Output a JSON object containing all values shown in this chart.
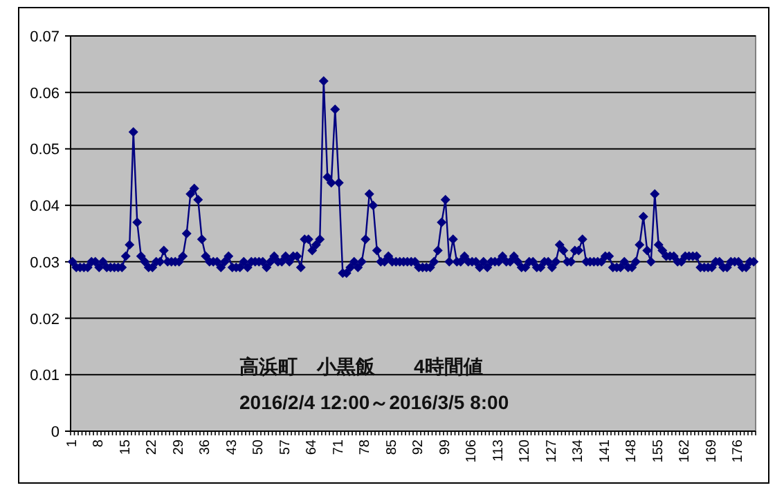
{
  "chart_data": {
    "type": "line",
    "title": "高浜町　小黒飯　　4時間値",
    "subtitle": "2016/2/4 12:00～2016/3/5 8:00",
    "categories": [
      "1",
      null,
      null,
      null,
      null,
      null,
      null,
      "8",
      null,
      null,
      null,
      null,
      null,
      null,
      "15",
      null,
      null,
      null,
      null,
      null,
      null,
      "22",
      null,
      null,
      null,
      null,
      null,
      null,
      "29",
      null,
      null,
      null,
      null,
      null,
      null,
      "36",
      null,
      null,
      null,
      null,
      null,
      null,
      "43",
      null,
      null,
      null,
      null,
      null,
      null,
      "50",
      null,
      null,
      null,
      null,
      null,
      null,
      "57",
      null,
      null,
      null,
      null,
      null,
      null,
      "64",
      null,
      null,
      null,
      null,
      null,
      null,
      "71",
      null,
      null,
      null,
      null,
      null,
      null,
      "78",
      null,
      null,
      null,
      null,
      null,
      null,
      "85",
      null,
      null,
      null,
      null,
      null,
      null,
      "92",
      null,
      null,
      null,
      null,
      null,
      null,
      "99",
      null,
      null,
      null,
      null,
      null,
      null,
      "106",
      null,
      null,
      null,
      null,
      null,
      null,
      "113",
      null,
      null,
      null,
      null,
      null,
      null,
      "120",
      null,
      null,
      null,
      null,
      null,
      null,
      "127",
      null,
      null,
      null,
      null,
      null,
      null,
      "134",
      null,
      null,
      null,
      null,
      null,
      null,
      "141",
      null,
      null,
      null,
      null,
      null,
      null,
      "148",
      null,
      null,
      null,
      null,
      null,
      null,
      "155",
      null,
      null,
      null,
      null,
      null,
      null,
      "162",
      null,
      null,
      null,
      null,
      null,
      null,
      "169",
      null,
      null,
      null,
      null,
      null,
      null,
      "176",
      null,
      null,
      null,
      null
    ],
    "series": [
      {
        "color": "#000080",
        "values": [
          0.03,
          0.029,
          0.029,
          0.029,
          0.029,
          0.03,
          0.03,
          0.029,
          0.03,
          0.029,
          0.029,
          0.029,
          0.029,
          0.029,
          0.031,
          0.033,
          0.053,
          0.037,
          0.031,
          0.03,
          0.029,
          0.029,
          0.03,
          0.03,
          0.032,
          0.03,
          0.03,
          0.03,
          0.03,
          0.031,
          0.035,
          0.042,
          0.043,
          0.041,
          0.034,
          0.031,
          0.03,
          0.03,
          0.03,
          0.029,
          0.03,
          0.031,
          0.029,
          0.029,
          0.029,
          0.03,
          0.029,
          0.03,
          0.03,
          0.03,
          0.03,
          0.029,
          0.03,
          0.031,
          0.03,
          0.03,
          0.031,
          0.03,
          0.031,
          0.031,
          0.029,
          0.034,
          0.034,
          0.032,
          0.033,
          0.034,
          0.062,
          0.045,
          0.044,
          0.057,
          0.044,
          0.028,
          0.028,
          0.029,
          0.03,
          0.029,
          0.03,
          0.034,
          0.042,
          0.04,
          0.032,
          0.03,
          0.03,
          0.031,
          0.03,
          0.03,
          0.03,
          0.03,
          0.03,
          0.03,
          0.03,
          0.029,
          0.029,
          0.029,
          0.029,
          0.03,
          0.032,
          0.037,
          0.041,
          0.03,
          0.034,
          0.03,
          0.03,
          0.031,
          0.03,
          0.03,
          0.03,
          0.029,
          0.03,
          0.029,
          0.03,
          0.03,
          0.03,
          0.031,
          0.03,
          0.03,
          0.031,
          0.03,
          0.029,
          0.029,
          0.03,
          0.03,
          0.029,
          0.029,
          0.03,
          0.03,
          0.029,
          0.03,
          0.033,
          0.032,
          0.03,
          0.03,
          0.032,
          0.032,
          0.034,
          0.03,
          0.03,
          0.03,
          0.03,
          0.03,
          0.031,
          0.031,
          0.029,
          0.029,
          0.029,
          0.03,
          0.029,
          0.029,
          0.03,
          0.033,
          0.038,
          0.032,
          0.03,
          0.042,
          0.033,
          0.032,
          0.031,
          0.031,
          0.031,
          0.03,
          0.03,
          0.031,
          0.031,
          0.031,
          0.031,
          0.029,
          0.029,
          0.029,
          0.029,
          0.03,
          0.03,
          0.029,
          0.029,
          0.03,
          0.03,
          0.03,
          0.029,
          0.029,
          0.03,
          0.03
        ]
      }
    ],
    "ylim": [
      0,
      0.07
    ],
    "yticks": [
      0,
      0.01,
      0.02,
      0.03,
      0.04,
      0.05,
      0.06,
      0.07
    ],
    "grid": "y",
    "marker": "diamond",
    "line_style": "solid"
  }
}
